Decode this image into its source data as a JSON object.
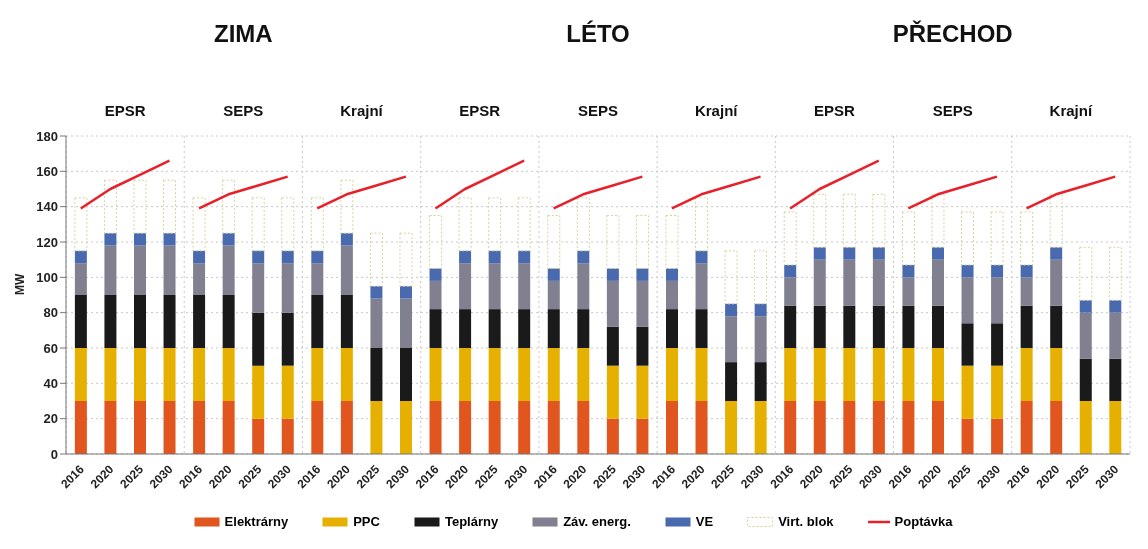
{
  "chart_data": {
    "type": "bar",
    "stacked": true,
    "ylabel": "MW",
    "annotations": [
      "ZIMA",
      "LÉTO",
      "PŘECHOD",
      "EPSR",
      "SEPS",
      "Krajní",
      "EPSR",
      "SEPS",
      "Krajní",
      "EPSR",
      "SEPS",
      "Krajní"
    ],
    "categories": [
      "2016",
      "2020",
      "2025",
      "2030",
      "2016",
      "2020",
      "2025",
      "2030",
      "2016",
      "2020",
      "2025",
      "2030",
      "2016",
      "2020",
      "2025",
      "2030",
      "2016",
      "2020",
      "2025",
      "2030",
      "2016",
      "2020",
      "2025",
      "2030",
      "2016",
      "2020",
      "2025",
      "2030",
      "2016",
      "2020",
      "2025",
      "2030",
      "2016",
      "2020",
      "2025",
      "2030"
    ],
    "ylim": [
      0,
      180
    ],
    "yticks": [
      0,
      20,
      40,
      60,
      80,
      100,
      120,
      140,
      160,
      180
    ],
    "grid": true,
    "legend": "bottom",
    "series": [
      {
        "name": "Elektrárny",
        "color": "#e0561e",
        "values": [
          30,
          30,
          30,
          30,
          30,
          30,
          20,
          20,
          30,
          30,
          0,
          0,
          30,
          30,
          30,
          30,
          30,
          30,
          20,
          20,
          30,
          30,
          0,
          0,
          30,
          30,
          30,
          30,
          30,
          30,
          20,
          20,
          30,
          30,
          0,
          0
        ]
      },
      {
        "name": "PPC",
        "color": "#e6b000",
        "values": [
          30,
          30,
          30,
          30,
          30,
          30,
          30,
          30,
          30,
          30,
          30,
          30,
          30,
          30,
          30,
          30,
          30,
          30,
          30,
          30,
          30,
          30,
          30,
          30,
          30,
          30,
          30,
          30,
          30,
          30,
          30,
          30,
          30,
          30,
          30,
          30
        ]
      },
      {
        "name": "Teplárny",
        "color": "#1a1a1a",
        "values": [
          30,
          30,
          30,
          30,
          30,
          30,
          30,
          30,
          30,
          30,
          30,
          30,
          22,
          22,
          22,
          22,
          22,
          22,
          22,
          22,
          22,
          22,
          22,
          22,
          24,
          24,
          24,
          24,
          24,
          24,
          24,
          24,
          24,
          24,
          24,
          24
        ]
      },
      {
        "name": "Záv. energ.",
        "color": "#808090",
        "values": [
          18,
          28,
          28,
          28,
          18,
          28,
          28,
          28,
          18,
          28,
          28,
          28,
          16,
          26,
          26,
          26,
          16,
          26,
          26,
          26,
          16,
          26,
          26,
          26,
          16,
          26,
          26,
          26,
          16,
          26,
          26,
          26,
          16,
          26,
          26,
          26
        ]
      },
      {
        "name": "VE",
        "color": "#4a6ab0",
        "values": [
          7,
          7,
          7,
          7,
          7,
          7,
          7,
          7,
          7,
          7,
          7,
          7,
          7,
          7,
          7,
          7,
          7,
          7,
          7,
          7,
          7,
          7,
          7,
          7,
          7,
          7,
          7,
          7,
          7,
          7,
          7,
          7,
          7,
          7,
          7,
          7
        ]
      },
      {
        "name": "Virt. blok",
        "color": "#d6d29a",
        "values": [
          30,
          30,
          30,
          30,
          30,
          30,
          30,
          30,
          30,
          30,
          30,
          30,
          30,
          30,
          30,
          30,
          30,
          30,
          30,
          30,
          30,
          30,
          30,
          30,
          30,
          30,
          30,
          30,
          30,
          30,
          30,
          30,
          30,
          30,
          30,
          30
        ]
      },
      {
        "type": "line",
        "name": "Poptávka",
        "color": "#e8202a",
        "values": [
          139,
          150,
          158,
          166,
          null,
          null,
          null,
          null,
          null,
          null,
          null,
          null,
          null,
          null,
          null,
          null,
          null,
          null,
          null,
          null,
          null,
          null,
          null,
          null,
          null,
          null,
          null,
          null,
          null,
          null,
          null,
          null,
          null,
          null,
          null,
          null
        ]
      },
      {
        "type": "line",
        "color": "#e8202a",
        "values": [
          null,
          null,
          null,
          null,
          139,
          147,
          152,
          157,
          null,
          null,
          null,
          null,
          null,
          null,
          null,
          null,
          null,
          null,
          null,
          null,
          null,
          null,
          null,
          null,
          null,
          null,
          null,
          null,
          null,
          null,
          null,
          null,
          null,
          null,
          null,
          null
        ]
      },
      {
        "type": "line",
        "color": "#e8202a",
        "values": [
          null,
          null,
          null,
          null,
          null,
          null,
          null,
          null,
          139,
          147,
          152,
          157,
          null,
          null,
          null,
          null,
          null,
          null,
          null,
          null,
          null,
          null,
          null,
          null,
          null,
          null,
          null,
          null,
          null,
          null,
          null,
          null,
          null,
          null,
          null,
          null
        ]
      },
      {
        "type": "line",
        "color": "#e8202a",
        "values": [
          null,
          null,
          null,
          null,
          null,
          null,
          null,
          null,
          null,
          null,
          null,
          null,
          139,
          150,
          158,
          166,
          null,
          null,
          null,
          null,
          null,
          null,
          null,
          null,
          null,
          null,
          null,
          null,
          null,
          null,
          null,
          null,
          null,
          null,
          null,
          null
        ]
      },
      {
        "type": "line",
        "color": "#e8202a",
        "values": [
          null,
          null,
          null,
          null,
          null,
          null,
          null,
          null,
          null,
          null,
          null,
          null,
          null,
          null,
          null,
          null,
          139,
          147,
          152,
          157,
          null,
          null,
          null,
          null,
          null,
          null,
          null,
          null,
          null,
          null,
          null,
          null,
          null,
          null,
          null,
          null
        ]
      },
      {
        "type": "line",
        "color": "#e8202a",
        "values": [
          null,
          null,
          null,
          null,
          null,
          null,
          null,
          null,
          null,
          null,
          null,
          null,
          null,
          null,
          null,
          null,
          null,
          null,
          null,
          null,
          139,
          147,
          152,
          157,
          null,
          null,
          null,
          null,
          null,
          null,
          null,
          null,
          null,
          null,
          null,
          null
        ]
      },
      {
        "type": "line",
        "color": "#e8202a",
        "values": [
          null,
          null,
          null,
          null,
          null,
          null,
          null,
          null,
          null,
          null,
          null,
          null,
          null,
          null,
          null,
          null,
          null,
          null,
          null,
          null,
          null,
          null,
          null,
          null,
          139,
          150,
          158,
          166,
          null,
          null,
          null,
          null,
          null,
          null,
          null,
          null
        ]
      },
      {
        "type": "line",
        "color": "#e8202a",
        "values": [
          null,
          null,
          null,
          null,
          null,
          null,
          null,
          null,
          null,
          null,
          null,
          null,
          null,
          null,
          null,
          null,
          null,
          null,
          null,
          null,
          null,
          null,
          null,
          null,
          null,
          null,
          null,
          null,
          139,
          147,
          152,
          157,
          null,
          null,
          null,
          null
        ]
      },
      {
        "type": "line",
        "color": "#e8202a",
        "values": [
          null,
          null,
          null,
          null,
          null,
          null,
          null,
          null,
          null,
          null,
          null,
          null,
          null,
          null,
          null,
          null,
          null,
          null,
          null,
          null,
          null,
          null,
          null,
          null,
          null,
          null,
          null,
          null,
          null,
          null,
          null,
          null,
          139,
          147,
          152,
          157
        ]
      }
    ]
  }
}
